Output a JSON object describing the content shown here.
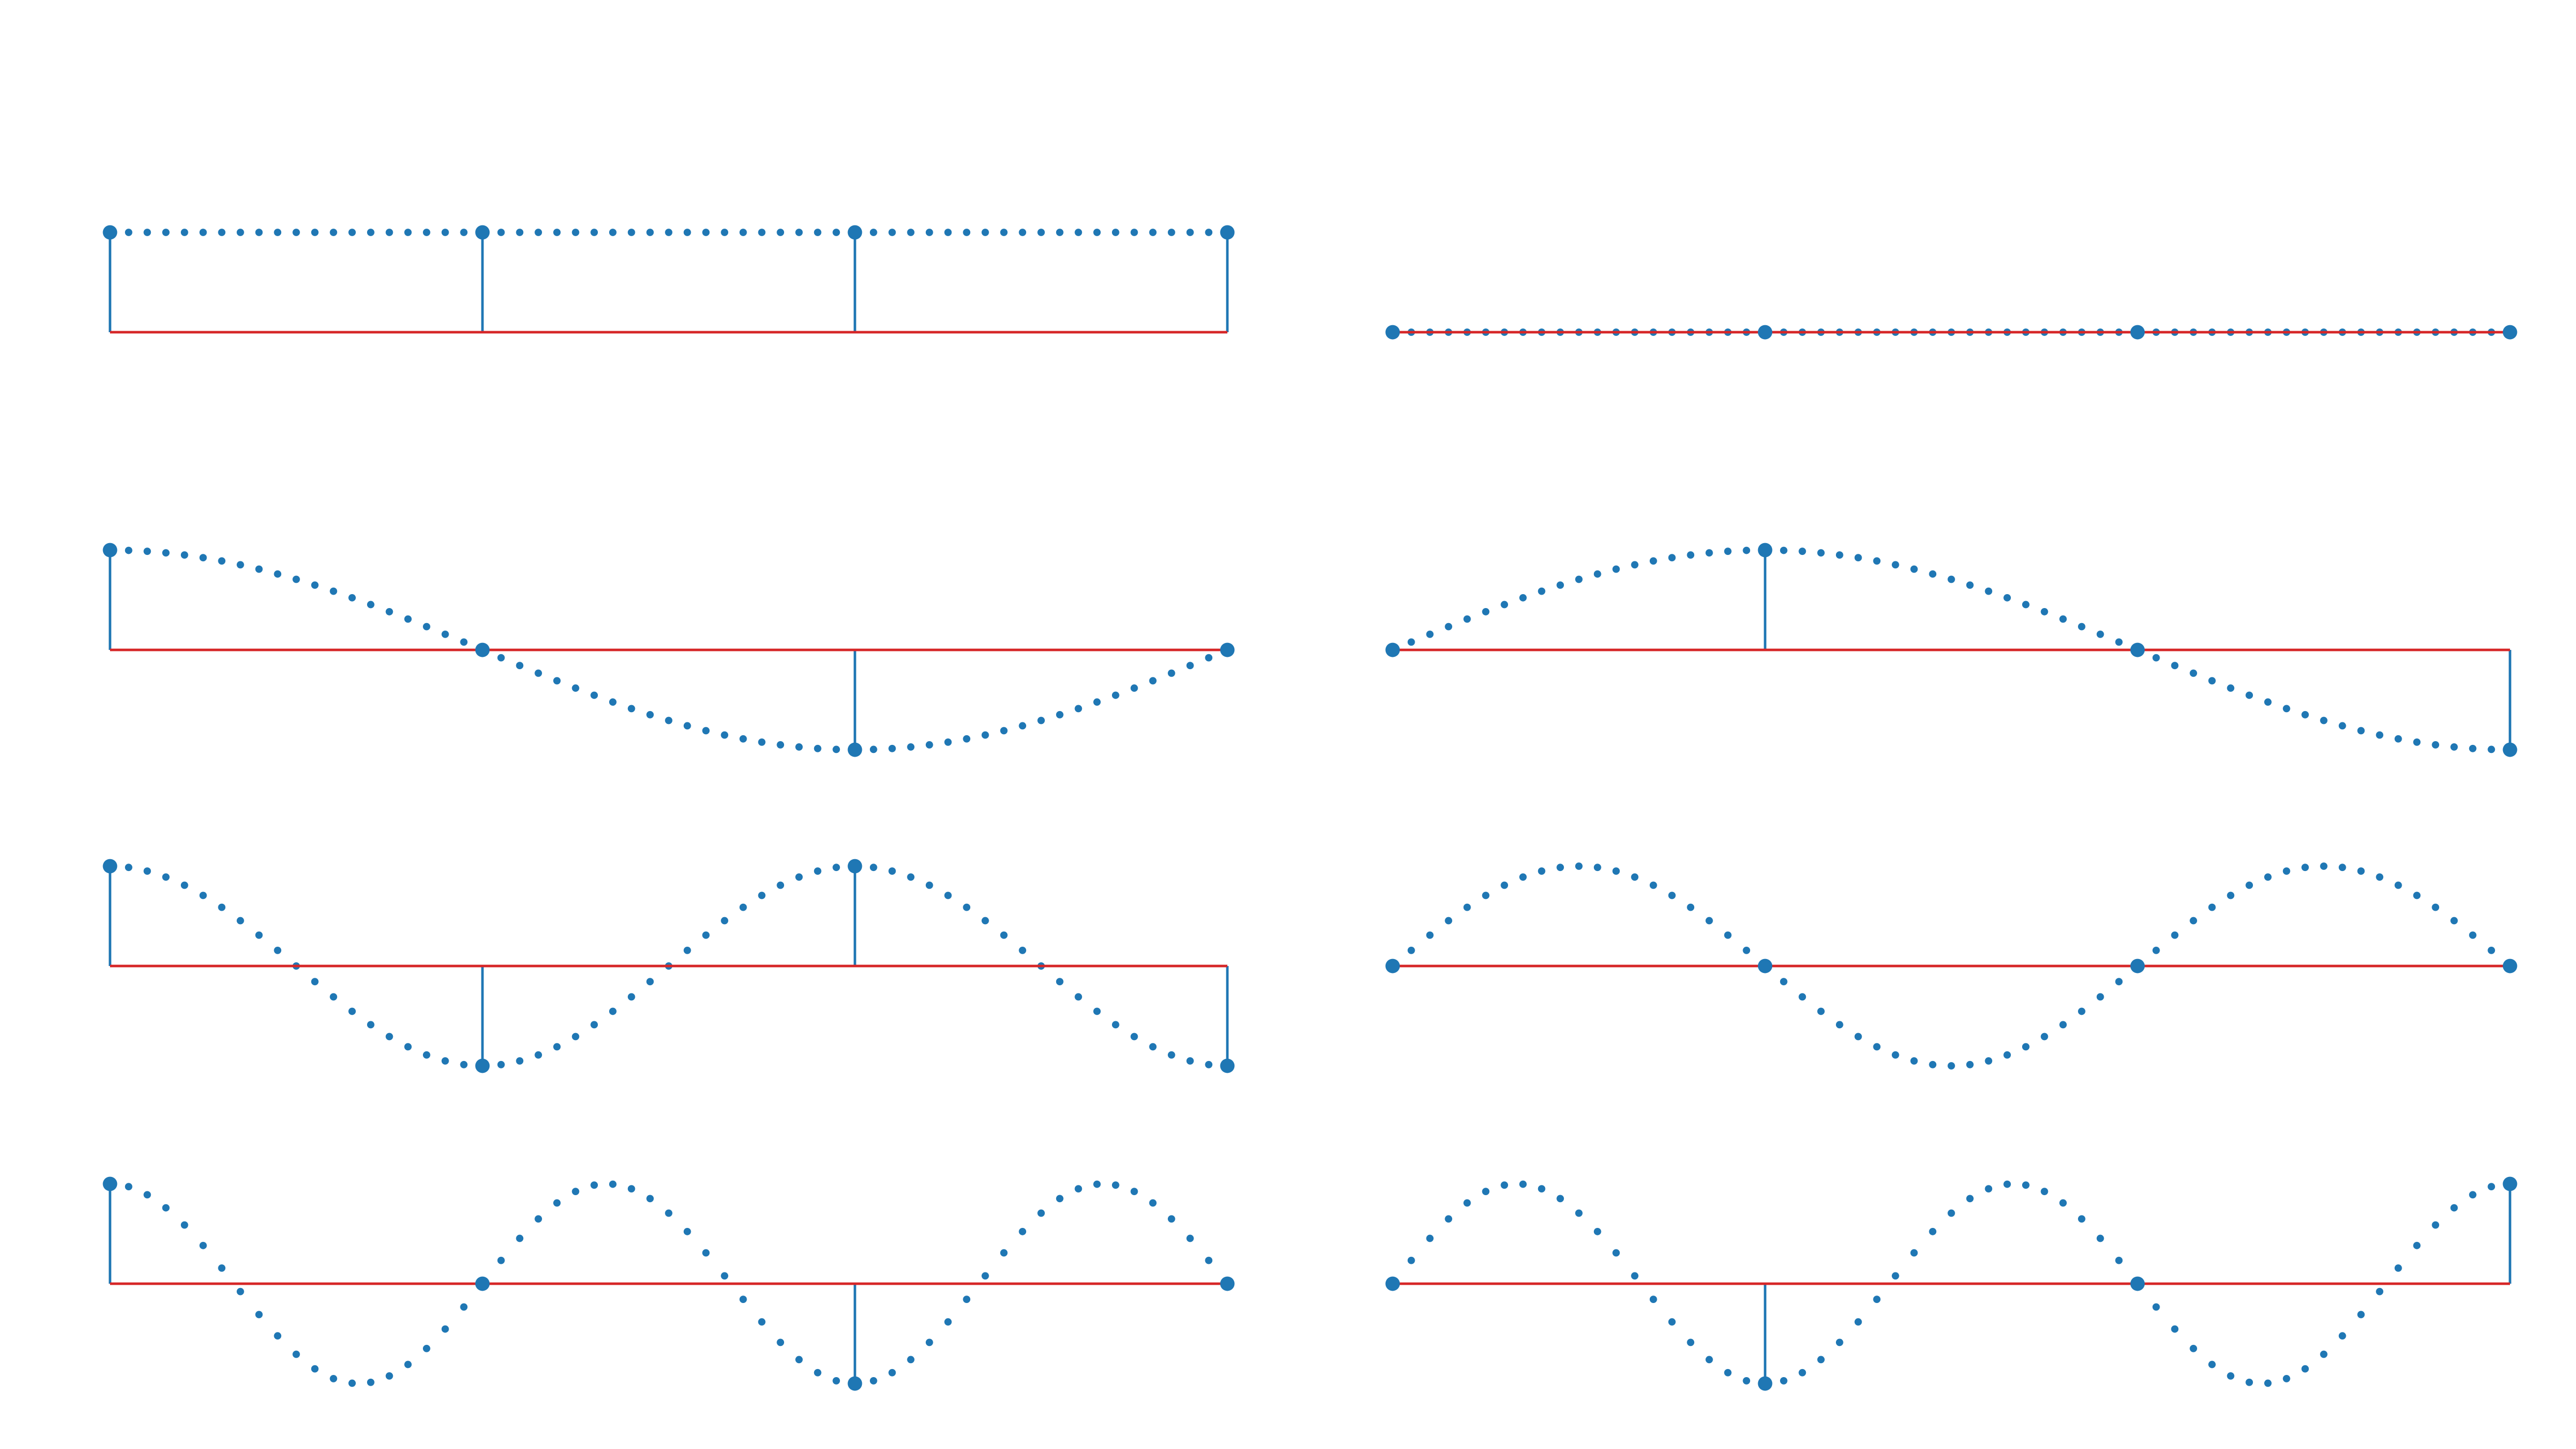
{
  "colors": {
    "stem": "#1f77b4",
    "baseline": "#d62728",
    "background": "#ffffff"
  },
  "chart_data": [
    {
      "type": "stem",
      "k": 0,
      "part": "cos",
      "x": [
        0,
        1,
        2,
        3
      ],
      "values": [
        1,
        1,
        1,
        1
      ],
      "ylim": [
        -1.1,
        1.1
      ],
      "grid": false
    },
    {
      "type": "stem",
      "k": 0,
      "part": "sin",
      "x": [
        0,
        1,
        2,
        3
      ],
      "values": [
        0,
        0,
        0,
        0
      ],
      "ylim": [
        -1.1,
        1.1
      ],
      "grid": false
    },
    {
      "type": "stem",
      "k": 1,
      "part": "cos",
      "x": [
        0,
        1,
        2,
        3
      ],
      "values": [
        1,
        0,
        -1,
        0
      ],
      "ylim": [
        -1.1,
        1.1
      ],
      "grid": false
    },
    {
      "type": "stem",
      "k": 1,
      "part": "sin",
      "x": [
        0,
        1,
        2,
        3
      ],
      "values": [
        0,
        1,
        0,
        -1
      ],
      "ylim": [
        -1.1,
        1.1
      ],
      "grid": false
    },
    {
      "type": "stem",
      "k": 2,
      "part": "cos",
      "x": [
        0,
        1,
        2,
        3
      ],
      "values": [
        1,
        -1,
        1,
        -1
      ],
      "ylim": [
        -1.1,
        1.1
      ],
      "grid": false
    },
    {
      "type": "stem",
      "k": 2,
      "part": "sin",
      "x": [
        0,
        1,
        2,
        3
      ],
      "values": [
        0,
        0,
        0,
        0
      ],
      "ylim": [
        -1.1,
        1.1
      ],
      "grid": false
    },
    {
      "type": "stem",
      "k": 3,
      "part": "cos",
      "x": [
        0,
        1,
        2,
        3
      ],
      "values": [
        1,
        0,
        -1,
        0
      ],
      "ylim": [
        -1.1,
        1.1
      ],
      "grid": false
    },
    {
      "type": "stem",
      "k": 3,
      "part": "sin",
      "x": [
        0,
        1,
        2,
        3
      ],
      "values": [
        0,
        -1,
        0,
        1
      ],
      "ylim": [
        -1.1,
        1.1
      ],
      "grid": false
    }
  ]
}
